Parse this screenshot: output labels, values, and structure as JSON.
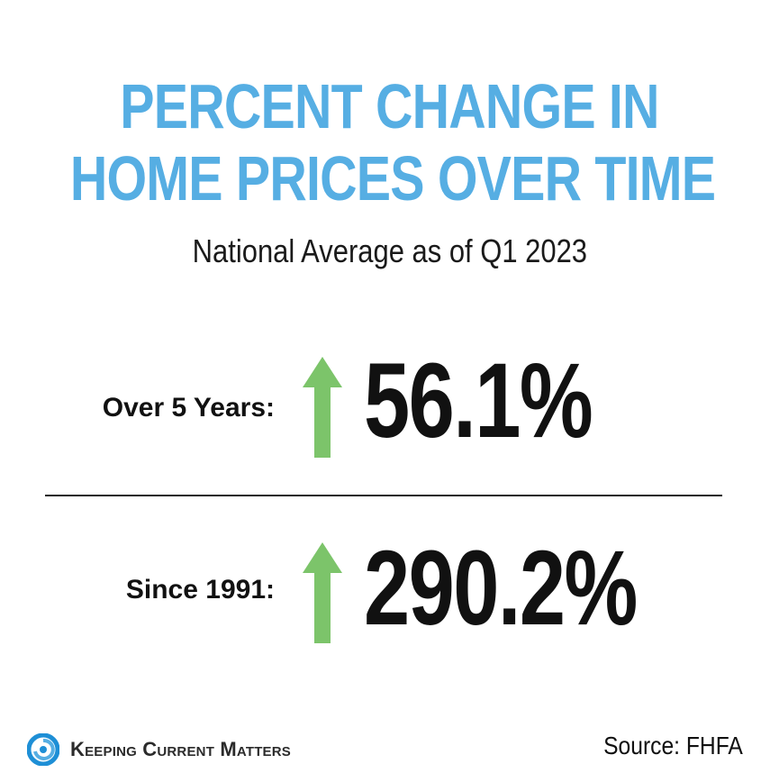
{
  "title": {
    "line1": "PERCENT CHANGE IN",
    "line2": "HOME PRICES OVER TIME"
  },
  "subtitle": "National Average as of Q1 2023",
  "stats": [
    {
      "label": "Over 5 Years:",
      "value": "56.1%",
      "arrow": "up-arrow-icon"
    },
    {
      "label": "Since 1991:",
      "value": "290.2%",
      "arrow": "up-arrow-icon"
    }
  ],
  "footer": {
    "brand": "Keeping Current Matters",
    "source": "Source: FHFA"
  },
  "colors": {
    "title": "#56aee3",
    "arrow": "#7cc46a",
    "logo": "#1e8fd6"
  }
}
